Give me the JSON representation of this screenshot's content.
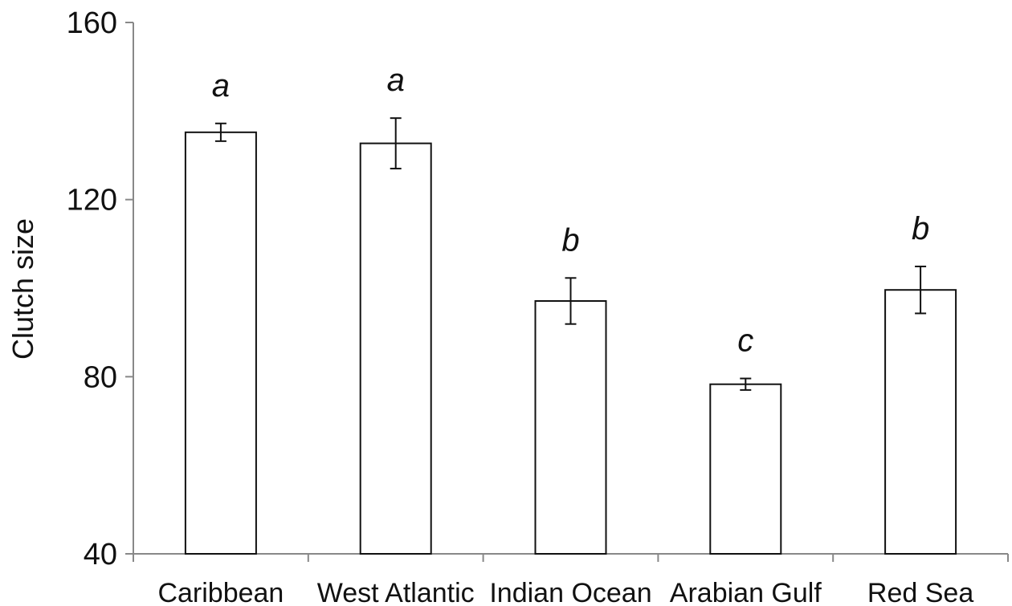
{
  "chart_data": {
    "type": "bar",
    "ylabel": "Clutch size",
    "xlabel": "",
    "ylim": [
      40,
      160
    ],
    "yticks": [
      40,
      80,
      120,
      160
    ],
    "categories": [
      "Caribbean",
      "West Atlantic",
      "Indian Ocean",
      "Arabian Gulf",
      "Red Sea"
    ],
    "values": [
      135.2,
      132.7,
      97.1,
      78.3,
      99.6
    ],
    "error": [
      2.0,
      5.7,
      5.2,
      1.3,
      5.3
    ],
    "significance_letters": [
      "a",
      "a",
      "b",
      "c",
      "b"
    ],
    "grid": false,
    "colors": {
      "bar_fill": "#ffffff",
      "bar_stroke": "#111111",
      "axis": "#888888",
      "text": "#111111"
    }
  }
}
